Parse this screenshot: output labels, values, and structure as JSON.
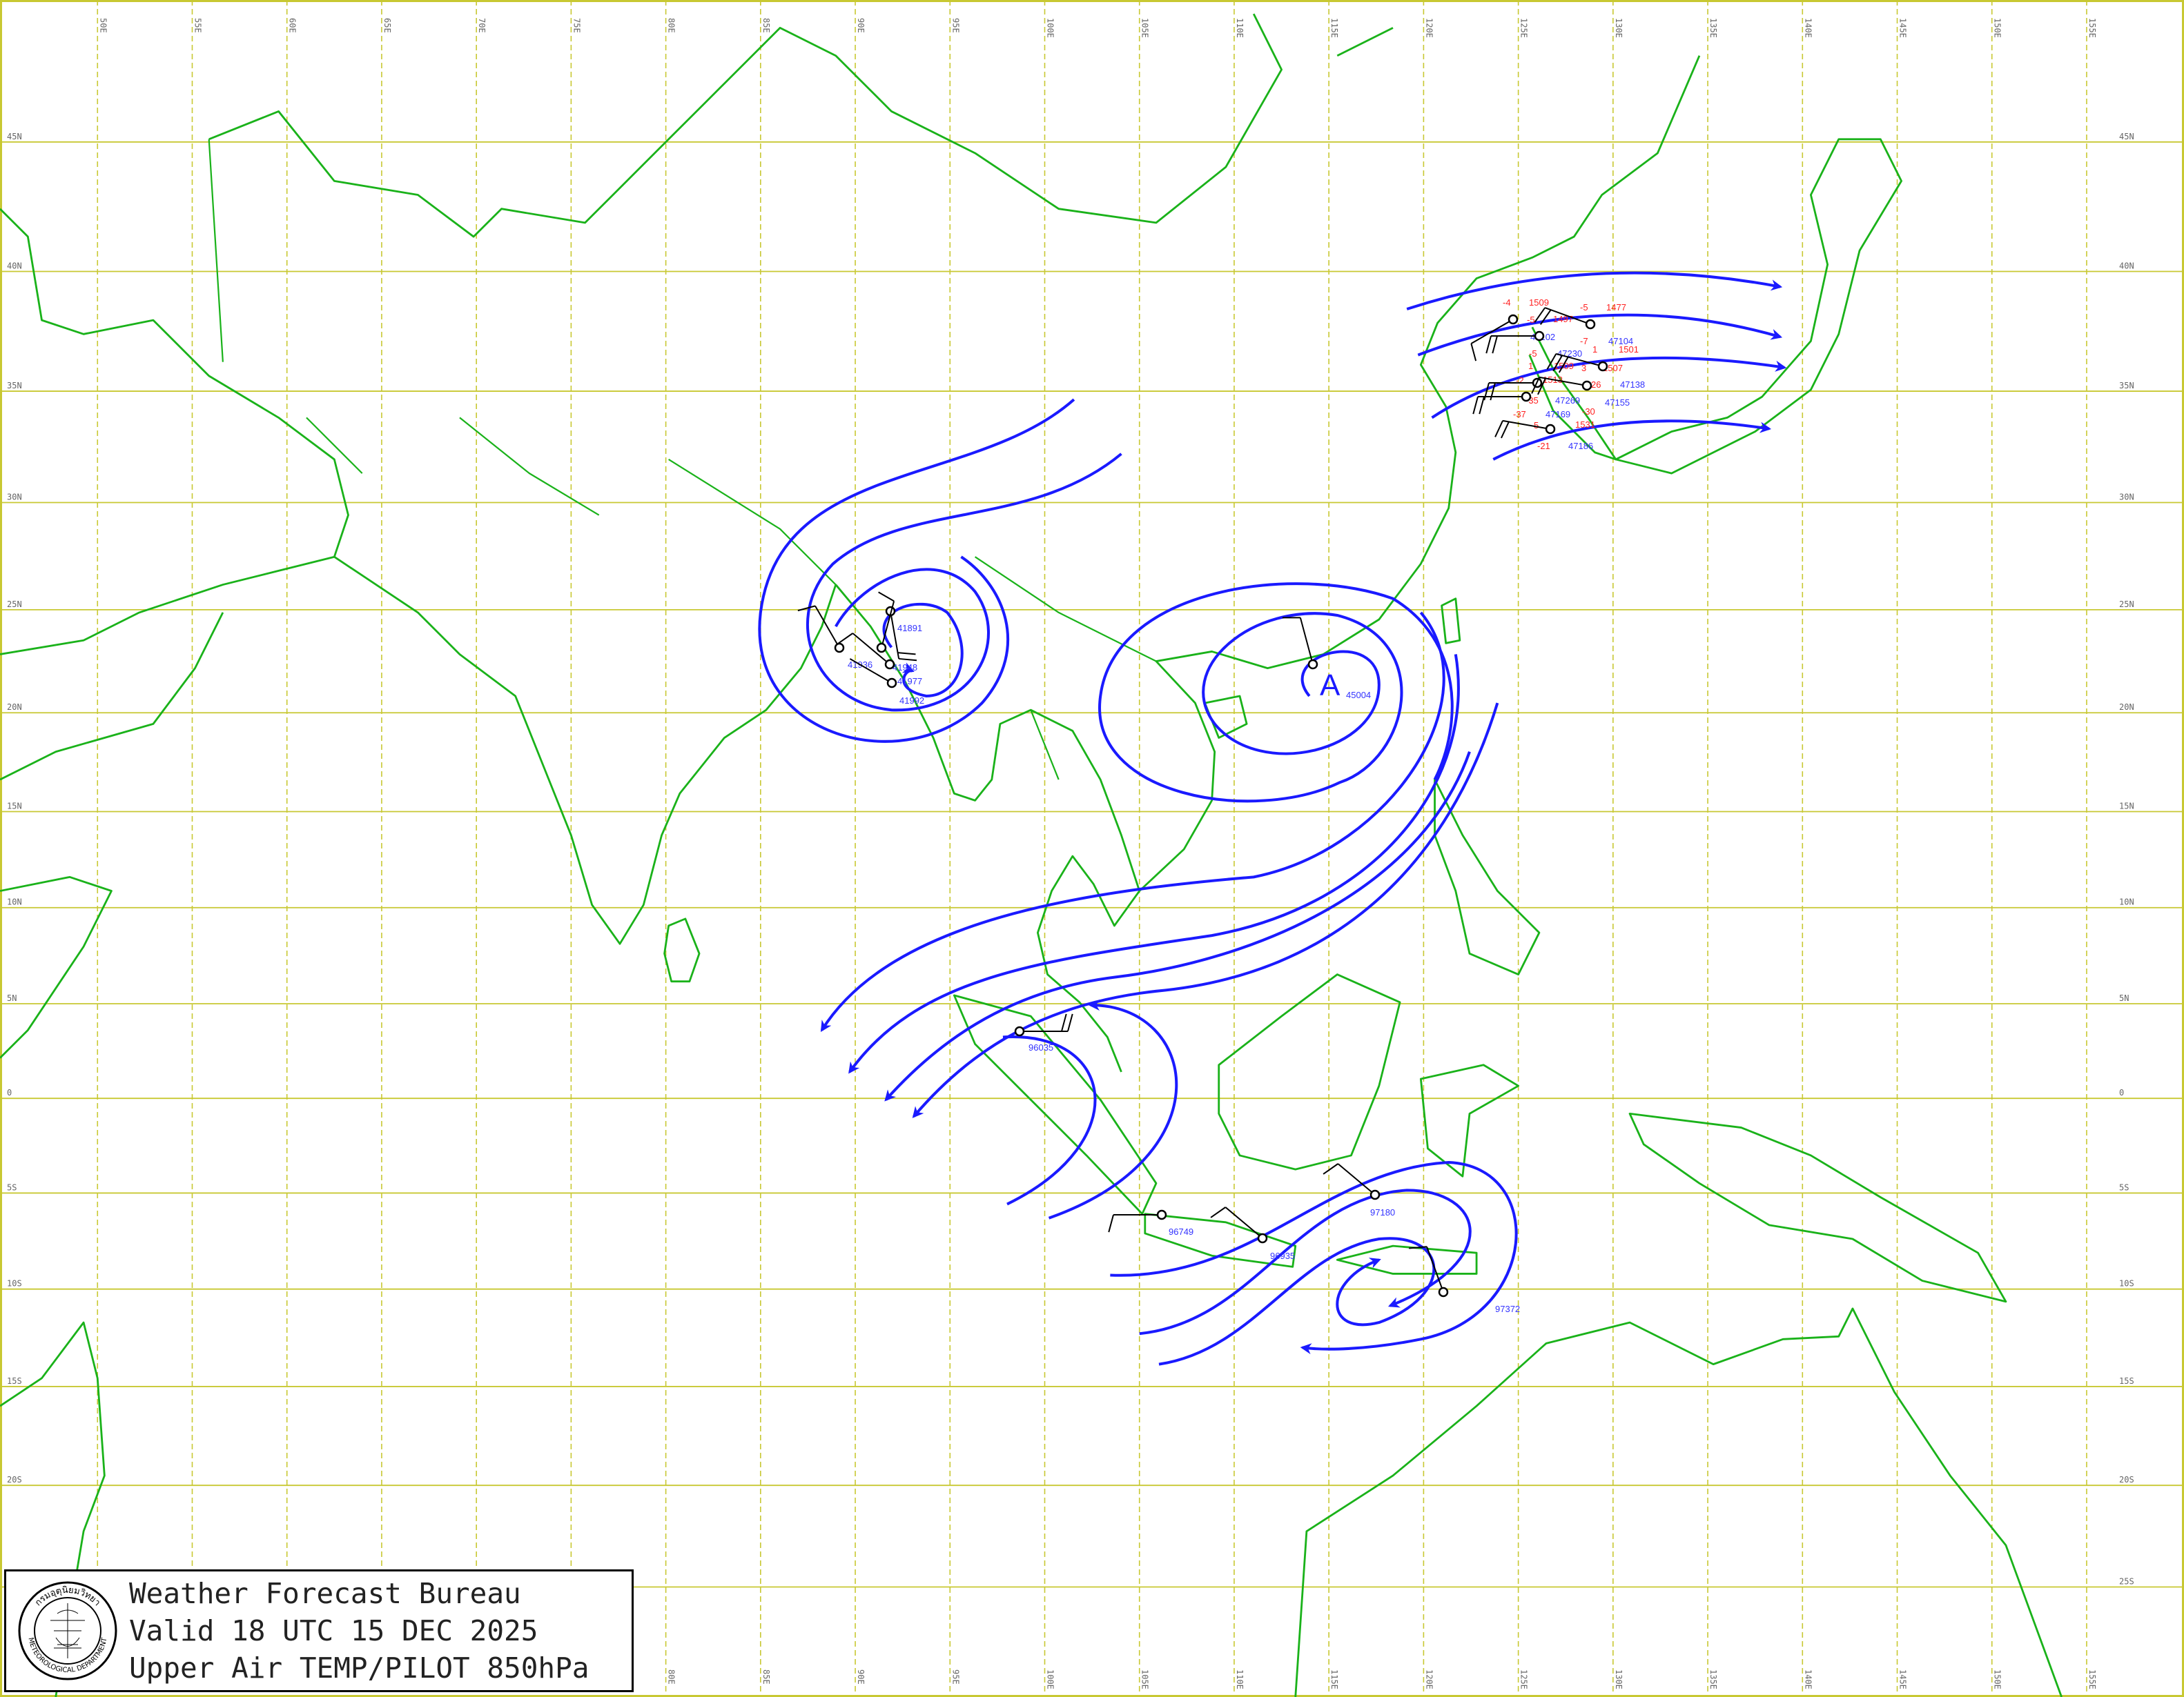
{
  "legend": {
    "line1": "Weather Forecast Bureau",
    "line2": "Valid 18 UTC 15 DEC 2025",
    "line3": "Upper Air TEMP/PILOT 850hPa",
    "seal_text_top": "กรมอุตุนิยมวิทยา",
    "seal_text_bottom": "METEOROLOGICAL DEPARTMENT"
  },
  "grid": {
    "lon_labels": [
      "50E",
      "55E",
      "60E",
      "65E",
      "70E",
      "75E",
      "80E",
      "85E",
      "90E",
      "95E",
      "100E",
      "105E",
      "110E",
      "115E",
      "120E",
      "125E",
      "130E",
      "135E",
      "140E",
      "145E",
      "150E",
      "155E"
    ],
    "lat_labels": [
      "45N",
      "40N",
      "35N",
      "30N",
      "25N",
      "20N",
      "15N",
      "10N",
      "5N",
      "0",
      "5S",
      "10S",
      "15S",
      "20S",
      "25S"
    ]
  },
  "centers": [
    {
      "symbol": "A"
    }
  ],
  "stations": [
    "47102",
    "47104",
    "47230",
    "47138",
    "47155",
    "47269",
    "47169",
    "47186",
    "41891",
    "41936",
    "41948",
    "41977",
    "41992",
    "45004",
    "96035",
    "96749",
    "96935",
    "97180",
    "97372"
  ],
  "plotted_values": [
    "-4",
    "1509",
    "-5",
    "1497",
    "-5",
    "1477",
    "-7",
    "1",
    "1501",
    "-5",
    "1",
    "1509",
    "-2",
    "1513",
    "3",
    "1507",
    "26",
    "-35",
    "-30",
    "-37",
    "5",
    "1531",
    "-21"
  ],
  "colors": {
    "coastline": "#1ab21a",
    "gridline": "#c8c832",
    "streamline": "#1a1aff",
    "station_id": "#3333ff",
    "plotted_value": "#ff2020",
    "wind_barb": "#000000"
  }
}
